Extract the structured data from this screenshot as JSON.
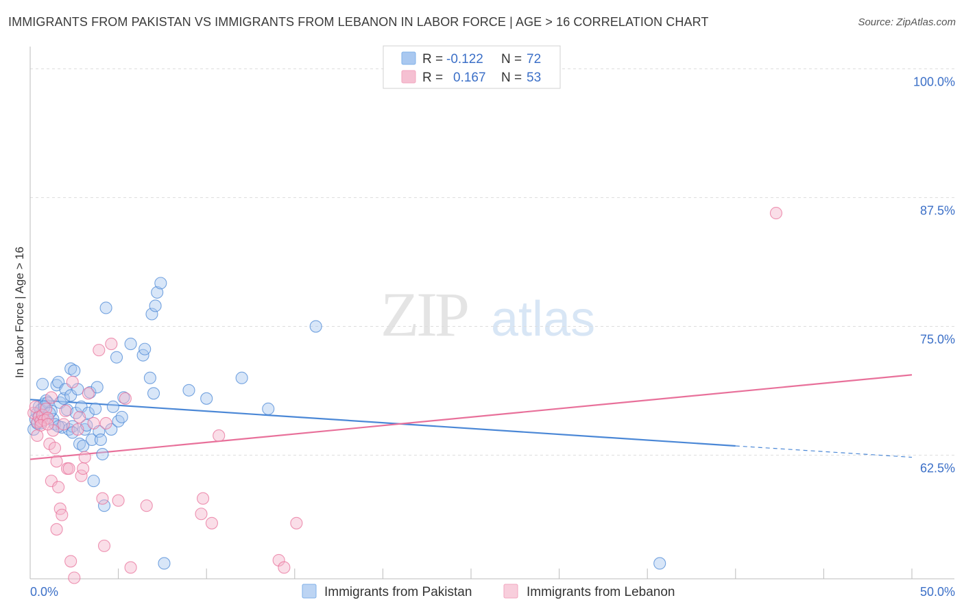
{
  "title": "IMMIGRANTS FROM PAKISTAN VS IMMIGRANTS FROM LEBANON IN LABOR FORCE | AGE > 16 CORRELATION CHART",
  "source": "Source: ZipAtlas.com",
  "watermark": {
    "zip": "ZIP",
    "atlas": "atlas"
  },
  "legend_top": [
    {
      "r_label": "R =",
      "r_value": "-0.122",
      "n_label": "N =",
      "n_value": "72",
      "color": "#7fb0e8"
    },
    {
      "r_label": "R =",
      "r_value": "0.167",
      "n_label": "N =",
      "n_value": "53",
      "color": "#f2a5bf"
    }
  ],
  "colors": {
    "blue": "#4a87d6",
    "blue_fill": "#a9c8f0",
    "pink": "#e8709a",
    "pink_fill": "#f5b5cb",
    "value_text": "#3b6fc7",
    "grid": "#dcdcdc"
  },
  "chart_data": {
    "type": "scatter",
    "xlabel": "",
    "ylabel": "In Labor Force | Age > 16",
    "xlim": [
      0,
      50
    ],
    "ylim": [
      50.5,
      101.5
    ],
    "x_tick_labels": [
      "0.0%",
      "50.0%"
    ],
    "y_ticks": [
      62.5,
      75.0,
      87.5,
      100.0
    ],
    "y_tick_labels": [
      "62.5%",
      "75.0%",
      "87.5%",
      "100.0%"
    ],
    "grid": true,
    "legend": "bottom-center",
    "series": [
      {
        "name": "Immigrants from Pakistan",
        "color": "#4a87d6",
        "trend": {
          "x1": 0,
          "y1": 67.9,
          "x2": 40,
          "y2": 63.4,
          "dash_x2": 50,
          "dash_y2": 62.3
        },
        "points": [
          [
            0.2,
            65.0
          ],
          [
            0.3,
            66.0
          ],
          [
            0.4,
            66.6
          ],
          [
            0.5,
            67.2
          ],
          [
            0.6,
            65.6
          ],
          [
            0.7,
            66.2
          ],
          [
            0.8,
            67.5
          ],
          [
            0.9,
            67.8
          ],
          [
            0.4,
            65.6
          ],
          [
            0.5,
            66.3
          ],
          [
            0.6,
            66.9
          ],
          [
            0.7,
            69.4
          ],
          [
            1.0,
            67.6
          ],
          [
            1.2,
            66.8
          ],
          [
            1.3,
            66.0
          ],
          [
            1.4,
            65.5
          ],
          [
            1.5,
            69.3
          ],
          [
            1.6,
            69.6
          ],
          [
            1.7,
            67.6
          ],
          [
            1.8,
            65.2
          ],
          [
            1.9,
            68.0
          ],
          [
            2.0,
            68.9
          ],
          [
            2.1,
            66.9
          ],
          [
            2.2,
            65.0
          ],
          [
            2.3,
            68.3
          ],
          [
            2.4,
            65.3
          ],
          [
            2.3,
            70.9
          ],
          [
            2.5,
            70.7
          ],
          [
            2.6,
            66.6
          ],
          [
            2.7,
            68.9
          ],
          [
            2.8,
            63.6
          ],
          [
            2.9,
            67.2
          ],
          [
            3.0,
            63.4
          ],
          [
            3.1,
            65.0
          ],
          [
            3.2,
            65.4
          ],
          [
            3.3,
            66.6
          ],
          [
            3.4,
            68.6
          ],
          [
            3.5,
            64.0
          ],
          [
            3.6,
            60.0
          ],
          [
            3.7,
            67.0
          ],
          [
            3.8,
            69.1
          ],
          [
            3.9,
            64.8
          ],
          [
            4.0,
            64.0
          ],
          [
            4.1,
            62.6
          ],
          [
            4.2,
            57.6
          ],
          [
            4.3,
            76.8
          ],
          [
            4.6,
            65.0
          ],
          [
            4.7,
            67.2
          ],
          [
            4.9,
            72.0
          ],
          [
            5.0,
            65.8
          ],
          [
            5.2,
            66.2
          ],
          [
            5.3,
            68.1
          ],
          [
            5.7,
            73.3
          ],
          [
            6.4,
            72.2
          ],
          [
            6.5,
            72.8
          ],
          [
            6.8,
            70.0
          ],
          [
            6.9,
            76.2
          ],
          [
            7.0,
            68.5
          ],
          [
            7.1,
            77.0
          ],
          [
            7.2,
            78.3
          ],
          [
            7.4,
            79.2
          ],
          [
            7.6,
            52.0
          ],
          [
            9.0,
            68.8
          ],
          [
            10.0,
            68.0
          ],
          [
            12.0,
            70.0
          ],
          [
            13.5,
            67.0
          ],
          [
            16.2,
            75.0
          ],
          [
            0.8,
            67.2
          ],
          [
            1.1,
            66.6
          ],
          [
            1.6,
            65.3
          ],
          [
            2.4,
            64.7
          ],
          [
            35.7,
            52.0
          ]
        ]
      },
      {
        "name": "Immigrants from Lebanon",
        "color": "#e8709a",
        "trend": {
          "x1": 0,
          "y1": 62.1,
          "x2": 50,
          "y2": 70.3
        },
        "points": [
          [
            0.2,
            66.6
          ],
          [
            0.3,
            67.2
          ],
          [
            0.4,
            65.7
          ],
          [
            0.5,
            66.2
          ],
          [
            0.6,
            65.8
          ],
          [
            0.7,
            66.4
          ],
          [
            0.8,
            65.9
          ],
          [
            0.9,
            67.0
          ],
          [
            1.0,
            66.1
          ],
          [
            1.1,
            63.6
          ],
          [
            1.2,
            60.0
          ],
          [
            1.3,
            64.9
          ],
          [
            1.4,
            63.2
          ],
          [
            1.5,
            61.9
          ],
          [
            1.6,
            59.4
          ],
          [
            1.7,
            57.3
          ],
          [
            1.8,
            56.7
          ],
          [
            1.5,
            55.3
          ],
          [
            1.9,
            65.5
          ],
          [
            2.0,
            66.8
          ],
          [
            2.1,
            61.2
          ],
          [
            2.2,
            61.2
          ],
          [
            2.3,
            52.2
          ],
          [
            2.4,
            69.6
          ],
          [
            2.5,
            50.6
          ],
          [
            2.7,
            65.0
          ],
          [
            2.9,
            60.5
          ],
          [
            3.0,
            61.2
          ],
          [
            3.1,
            62.3
          ],
          [
            3.3,
            68.5
          ],
          [
            3.6,
            65.6
          ],
          [
            3.9,
            72.7
          ],
          [
            4.1,
            58.3
          ],
          [
            4.2,
            53.7
          ],
          [
            4.3,
            65.6
          ],
          [
            4.6,
            73.3
          ],
          [
            5.0,
            58.1
          ],
          [
            5.4,
            68.0
          ],
          [
            5.7,
            51.6
          ],
          [
            6.6,
            57.6
          ],
          [
            9.7,
            56.8
          ],
          [
            9.8,
            58.3
          ],
          [
            10.3,
            55.9
          ],
          [
            10.7,
            64.4
          ],
          [
            14.1,
            52.3
          ],
          [
            14.4,
            51.6
          ],
          [
            15.1,
            55.9
          ],
          [
            42.3,
            86.0
          ],
          [
            0.6,
            65.4
          ],
          [
            1.0,
            65.5
          ],
          [
            1.2,
            68.1
          ],
          [
            0.4,
            64.4
          ],
          [
            2.8,
            66.2
          ]
        ]
      }
    ]
  }
}
